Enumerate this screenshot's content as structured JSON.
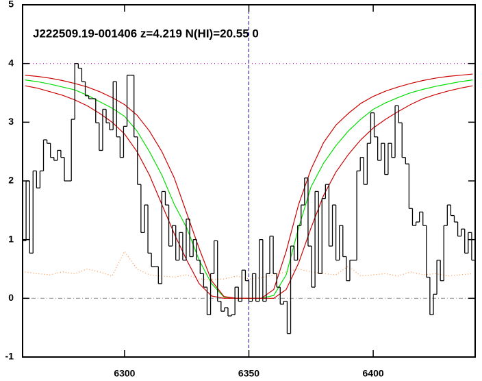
{
  "chart_data": {
    "type": "step",
    "title": "J222509.19-001406 z=4.219 N(HI)=20.55 0",
    "xlim": [
      6259,
      6441
    ],
    "ylim": [
      -1,
      5
    ],
    "xticks": [
      6300,
      6350,
      6400
    ],
    "yticks": [
      -1,
      0,
      1,
      2,
      3,
      4,
      5
    ],
    "hlines": [
      {
        "value": 4,
        "color": "#c000c0",
        "dash": "1,4"
      },
      {
        "value": 0,
        "color": "#999999",
        "dash": "6,3,1,3"
      }
    ],
    "vlines": [
      {
        "value": 6350,
        "color": "#0000c0",
        "dash": "5,3"
      }
    ],
    "series": [
      {
        "color": "#000000",
        "style": "step",
        "x": [
          6259,
          6260.4,
          6261.8,
          6263.2,
          6264.6,
          6266,
          6267.4,
          6268.8,
          6270.2,
          6271.6,
          6273,
          6274.4,
          6275.8,
          6277.2,
          6278.6,
          6280,
          6281.4,
          6282.8,
          6284.2,
          6285.6,
          6287,
          6288.4,
          6289.8,
          6291.2,
          6292.6,
          6294,
          6295.4,
          6296.8,
          6298.2,
          6299.6,
          6301,
          6302.4,
          6303.8,
          6305.2,
          6306.6,
          6308,
          6309.4,
          6310.8,
          6312.2,
          6313.6,
          6315,
          6316.4,
          6317.8,
          6319.2,
          6320.6,
          6322,
          6323.4,
          6324.8,
          6326.2,
          6327.6,
          6329,
          6330.4,
          6331.8,
          6333.2,
          6334.6,
          6336,
          6337.4,
          6338.8,
          6340.2,
          6341.6,
          6343,
          6344.4,
          6345.8,
          6347.2,
          6348.6,
          6350,
          6351.4,
          6352.8,
          6354.2,
          6355.6,
          6357,
          6358.4,
          6359.8,
          6361.2,
          6362.6,
          6364,
          6365.4,
          6366.8,
          6368.2,
          6369.6,
          6371,
          6372.4,
          6373.8,
          6375.2,
          6376.6,
          6378,
          6379.4,
          6380.8,
          6382.2,
          6383.6,
          6385,
          6386.4,
          6387.8,
          6389.2,
          6390.6,
          6392,
          6393.4,
          6394.8,
          6396.2,
          6397.6,
          6399,
          6400.4,
          6401.8,
          6403.2,
          6404.6,
          6406,
          6407.4,
          6408.8,
          6410.2,
          6411.6,
          6413,
          6414.4,
          6415.8,
          6417.2,
          6418.6,
          6420,
          6421.4,
          6422.8,
          6424.2,
          6425.6,
          6427,
          6428.4,
          6429.8,
          6431.2,
          6432.6,
          6434,
          6435.4,
          6436.8,
          6438.2,
          6439.6
        ],
        "values": [
          0.98,
          2.0,
          0.77,
          2.17,
          1.88,
          2.17,
          2.7,
          2.64,
          2.4,
          2.35,
          2.52,
          2.4,
          2.0,
          2.0,
          3.05,
          4.0,
          3.92,
          3.69,
          3.45,
          3.4,
          3.4,
          2.99,
          2.52,
          3.22,
          2.99,
          2.87,
          3.69,
          2.75,
          2.4,
          2.93,
          3.8,
          3.8,
          2.75,
          1.94,
          1.12,
          1.59,
          0.77,
          0.54,
          0.54,
          0.25,
          1.82,
          1.59,
          0.89,
          1.24,
          0.65,
          1.12,
          0.65,
          1.35,
          0.71,
          1.0,
          0.65,
          0.42,
          0.19,
          -0.28,
          0.42,
          0.98,
          -0.05,
          -0.22,
          -0.16,
          -0.3,
          -0.28,
          0.19,
          -0.05,
          0.48,
          0.3,
          -0.05,
          0.42,
          -0.05,
          1.0,
          -0.05,
          0.42,
          1.06,
          0.42,
          0.19,
          -0.1,
          -0.05,
          -0.6,
          0.89,
          0.65,
          1.24,
          1.59,
          2.05,
          0.89,
          0.19,
          1.82,
          0.42,
          1.7,
          1.94,
          0.89,
          1.59,
          0.65,
          1.24,
          0.71,
          0.3,
          0.65,
          0.65,
          2.17,
          2.4,
          1.94,
          2.64,
          3.16,
          2.75,
          2.35,
          2.64,
          2.11,
          2.64,
          2.4,
          3.28,
          2.99,
          2.4,
          2.29,
          1.53,
          1.24,
          1.3,
          1.47,
          1.24,
          0.36,
          -0.28,
          0.07,
          0.65,
          0.3,
          1.24,
          1.59,
          1.41,
          1.3,
          1.06,
          1.18,
          0.77,
          1.12,
          0.65
        ]
      },
      {
        "color": "#ff8c3a",
        "style": "dotted",
        "x": [
          6260,
          6265,
          6270,
          6275,
          6280,
          6285,
          6290,
          6295,
          6300,
          6305,
          6310,
          6315,
          6320,
          6325,
          6330,
          6335,
          6340,
          6345,
          6350,
          6355,
          6360,
          6365,
          6370,
          6375,
          6380,
          6385,
          6390,
          6395,
          6400,
          6405,
          6410,
          6415,
          6420,
          6425,
          6430,
          6435,
          6440
        ],
        "values": [
          0.45,
          0.42,
          0.4,
          0.45,
          0.42,
          0.5,
          0.45,
          0.38,
          0.8,
          0.5,
          0.4,
          0.38,
          0.36,
          0.4,
          0.33,
          0.32,
          0.33,
          0.38,
          0.33,
          0.35,
          0.4,
          0.45,
          0.5,
          0.45,
          0.42,
          0.4,
          0.55,
          0.38,
          0.4,
          0.42,
          0.38,
          0.45,
          0.4,
          0.42,
          0.38,
          0.4,
          0.42
        ]
      },
      {
        "color": "#00dd00",
        "style": "line",
        "x": [
          6260,
          6265,
          6270,
          6275,
          6280,
          6285,
          6290,
          6295,
          6300,
          6305,
          6310,
          6315,
          6320,
          6325,
          6330,
          6335,
          6340,
          6345,
          6350,
          6355,
          6360,
          6365,
          6370,
          6375,
          6380,
          6385,
          6390,
          6395,
          6400,
          6405,
          6410,
          6415,
          6420,
          6425,
          6430,
          6435,
          6440
        ],
        "values": [
          3.72,
          3.69,
          3.65,
          3.6,
          3.55,
          3.46,
          3.35,
          3.24,
          3.1,
          2.85,
          2.5,
          2.1,
          1.6,
          1.2,
          0.65,
          0.25,
          0.02,
          0,
          0,
          0,
          0.05,
          0.4,
          1.2,
          1.9,
          2.3,
          2.6,
          2.85,
          3.05,
          3.22,
          3.33,
          3.42,
          3.5,
          3.56,
          3.61,
          3.65,
          3.69,
          3.72
        ]
      },
      {
        "color": "#cc0000",
        "style": "line",
        "x": [
          6260,
          6265,
          6270,
          6275,
          6280,
          6285,
          6290,
          6295,
          6300,
          6305,
          6310,
          6315,
          6320,
          6325,
          6330,
          6335,
          6340,
          6345,
          6350,
          6355,
          6360,
          6365,
          6370,
          6375,
          6380,
          6385,
          6390,
          6395,
          6400,
          6405,
          6410,
          6415,
          6420,
          6425,
          6430,
          6435,
          6440
        ],
        "values": [
          3.8,
          3.78,
          3.75,
          3.71,
          3.66,
          3.6,
          3.52,
          3.42,
          3.3,
          3.12,
          2.85,
          2.5,
          2.05,
          1.45,
          0.85,
          0.3,
          0.03,
          0,
          0,
          0,
          0.15,
          0.8,
          1.6,
          2.2,
          2.65,
          2.95,
          3.15,
          3.32,
          3.44,
          3.53,
          3.6,
          3.66,
          3.71,
          3.75,
          3.78,
          3.8,
          3.82
        ]
      },
      {
        "color": "#cc0000",
        "style": "line",
        "x": [
          6260,
          6265,
          6270,
          6275,
          6280,
          6285,
          6290,
          6295,
          6300,
          6305,
          6310,
          6315,
          6320,
          6325,
          6330,
          6335,
          6340,
          6345,
          6350,
          6355,
          6360,
          6365,
          6370,
          6375,
          6380,
          6385,
          6390,
          6395,
          6400,
          6405,
          6410,
          6415,
          6420,
          6425,
          6430,
          6435,
          6440
        ],
        "values": [
          3.62,
          3.58,
          3.52,
          3.46,
          3.38,
          3.28,
          3.15,
          3.0,
          2.8,
          2.5,
          2.1,
          1.6,
          1.1,
          0.65,
          0.25,
          0.04,
          0,
          0,
          0,
          0,
          0,
          0.15,
          0.6,
          1.2,
          1.75,
          2.15,
          2.45,
          2.7,
          2.9,
          3.05,
          3.18,
          3.3,
          3.4,
          3.47,
          3.53,
          3.58,
          3.62
        ]
      }
    ]
  }
}
